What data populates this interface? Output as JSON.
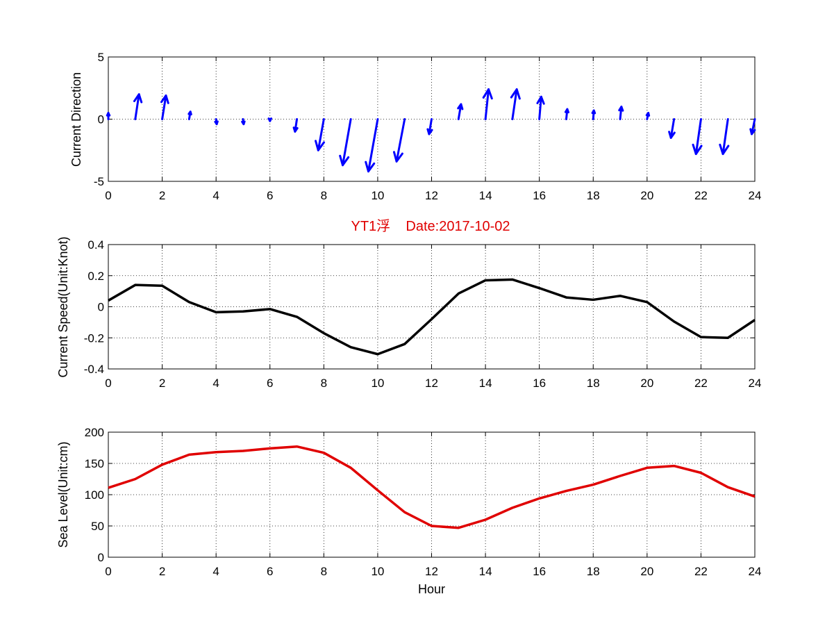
{
  "title": "YT1浮    Date:2017-10-02",
  "colors": {
    "title": "#e00000",
    "arrows": "#0000ff",
    "speed": "#000000",
    "level": "#e00000"
  },
  "chart_data": [
    {
      "type": "quiver",
      "ylabel": "Current Direction",
      "xlim": [
        0,
        24
      ],
      "ylim": [
        -5,
        5
      ],
      "x_ticks": [
        "0",
        "2",
        "4",
        "6",
        "8",
        "10",
        "12",
        "14",
        "16",
        "18",
        "20",
        "22",
        "24"
      ],
      "y_ticks": [
        "5",
        "0",
        "-5"
      ],
      "grid": true,
      "x": [
        0,
        1,
        2,
        3,
        4,
        5,
        6,
        7,
        8,
        9,
        10,
        11,
        12,
        13,
        14,
        15,
        16,
        17,
        18,
        19,
        20,
        21,
        22,
        23,
        24
      ],
      "u": [
        0.0,
        0.3,
        0.3,
        0.1,
        0.05,
        0.05,
        0.0,
        -0.15,
        -0.45,
        -0.65,
        -0.75,
        -0.65,
        -0.2,
        0.2,
        0.25,
        0.35,
        0.15,
        0.08,
        0.05,
        0.1,
        0.1,
        -0.25,
        -0.4,
        -0.4,
        -0.25
      ],
      "v": [
        0.5,
        2.0,
        1.9,
        0.6,
        -0.4,
        -0.4,
        -0.15,
        -1.0,
        -2.5,
        -3.7,
        -4.2,
        -3.4,
        -1.2,
        1.2,
        2.4,
        2.4,
        1.8,
        0.8,
        0.7,
        1.0,
        0.5,
        -1.5,
        -2.8,
        -2.8,
        -1.2
      ]
    },
    {
      "type": "line",
      "ylabel": "Current Speed(Unit:Knot)",
      "xlim": [
        0,
        24
      ],
      "ylim": [
        -0.4,
        0.4
      ],
      "x_ticks": [
        "0",
        "2",
        "4",
        "6",
        "8",
        "10",
        "12",
        "14",
        "16",
        "18",
        "20",
        "22",
        "24"
      ],
      "y_ticks": [
        "0.4",
        "0.2",
        "0",
        "-0.2",
        "-0.4"
      ],
      "grid": true,
      "x": [
        0,
        1,
        2,
        3,
        4,
        5,
        6,
        7,
        8,
        9,
        10,
        11,
        12,
        13,
        14,
        15,
        16,
        17,
        18,
        19,
        20,
        21,
        22,
        23,
        24
      ],
      "y": [
        0.04,
        0.14,
        0.135,
        0.03,
        -0.035,
        -0.03,
        -0.015,
        -0.065,
        -0.17,
        -0.26,
        -0.305,
        -0.24,
        -0.08,
        0.085,
        0.17,
        0.175,
        0.12,
        0.06,
        0.045,
        0.07,
        0.03,
        -0.095,
        -0.195,
        -0.2,
        -0.085
      ]
    },
    {
      "type": "line",
      "ylabel": "Sea Level(Unit:cm)",
      "xlabel": "Hour",
      "xlim": [
        0,
        24
      ],
      "ylim": [
        0,
        200
      ],
      "x_ticks": [
        "0",
        "2",
        "4",
        "6",
        "8",
        "10",
        "12",
        "14",
        "16",
        "18",
        "20",
        "22",
        "24"
      ],
      "y_ticks": [
        "200",
        "150",
        "100",
        "50",
        "0"
      ],
      "grid": true,
      "x": [
        0,
        1,
        2,
        3,
        4,
        5,
        6,
        7,
        8,
        9,
        10,
        11,
        12,
        13,
        14,
        15,
        16,
        17,
        18,
        19,
        20,
        21,
        22,
        23,
        24
      ],
      "y": [
        111,
        125,
        148,
        164,
        168,
        170,
        174,
        177,
        167,
        143,
        107,
        72,
        50,
        47,
        60,
        79,
        94,
        106,
        116,
        130,
        143,
        146,
        135,
        112,
        97
      ]
    }
  ]
}
